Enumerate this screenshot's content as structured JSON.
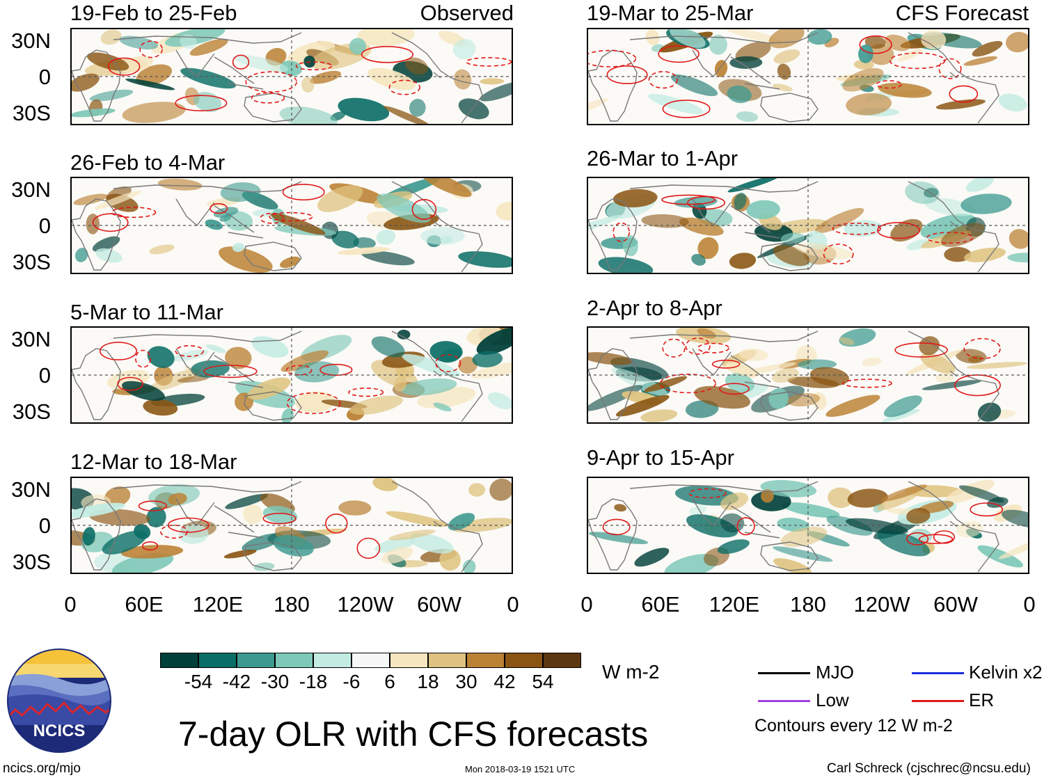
{
  "observed_label": "Observed",
  "forecast_label": "CFS Forecast",
  "observed_panels": [
    "19-Feb to 25-Feb",
    "26-Feb to 4-Mar",
    "5-Mar to 11-Mar",
    "12-Mar to 18-Mar"
  ],
  "forecast_panels": [
    "19-Mar to 25-Mar",
    "26-Mar to 1-Apr",
    "2-Apr to 8-Apr",
    "9-Apr to 15-Apr"
  ],
  "lat_labels": [
    "30N",
    "0",
    "30S"
  ],
  "lon_labels": [
    "0",
    "60E",
    "120E",
    "180",
    "120W",
    "60W",
    "0"
  ],
  "colorbar": {
    "colors": [
      "#01403a",
      "#0b6e66",
      "#3e9a90",
      "#7ec8b8",
      "#c3ebe2",
      "#f7f7f7",
      "#f6e6c0",
      "#dfc380",
      "#bb8236",
      "#8a5513",
      "#5b3812"
    ],
    "labels": [
      "-54",
      "-42",
      "-30",
      "-18",
      "-6",
      "6",
      "18",
      "30",
      "42",
      "54"
    ],
    "units": "W m-2"
  },
  "legend": {
    "items": [
      {
        "label": "MJO",
        "color": "#000000"
      },
      {
        "label": "Kelvin x2",
        "color": "#1a2ee0"
      },
      {
        "label": "Low",
        "color": "#a040e0"
      },
      {
        "label": "ER",
        "color": "#e01818"
      }
    ],
    "note": "Contours every 12 W m-2"
  },
  "title": "7-day OLR with CFS forecasts",
  "logo_text": "NCICS",
  "site": "ncics.org/mjo",
  "timestamp": "Mon 2018-03-19 1521 UTC",
  "credit": "Carl Schreck (cjschrec@ncsu.edu)"
}
